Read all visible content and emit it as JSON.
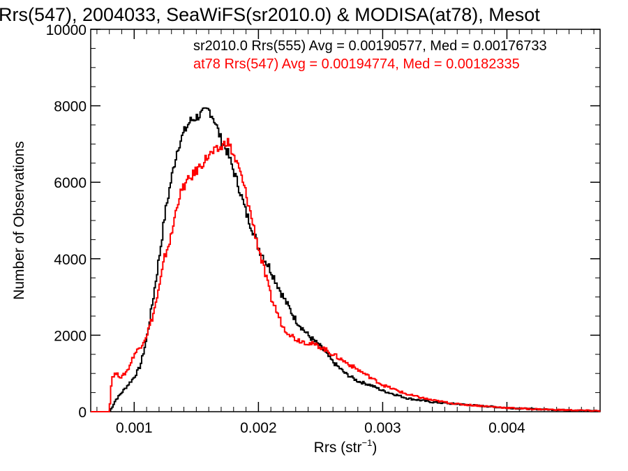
{
  "chart_data": {
    "type": "line",
    "title": "Rrs(547), 2004033, SeaWiFS(sr2010.0) & MODISA(at78), Mesot",
    "xlabel": "Rrs (str",
    "xlabel_sup": "−1",
    "xlabel_close": ")",
    "ylabel": "Number of Observations",
    "xlim": [
      0.00065,
      0.00475
    ],
    "ylim": [
      0,
      10000
    ],
    "xticks": [
      0.001,
      0.002,
      0.003,
      0.004
    ],
    "xtick_labels": [
      "0.001",
      "0.002",
      "0.003",
      "0.004"
    ],
    "yticks": [
      0,
      2000,
      4000,
      6000,
      8000,
      10000
    ],
    "ytick_labels": [
      "0",
      "2000",
      "4000",
      "6000",
      "8000",
      "10000"
    ],
    "grid": false,
    "legend_position": "top-right",
    "series": [
      {
        "name": "sr2010.0 Rrs(555) Avg = 0.00190577, Med = 0.00176733",
        "color": "#000000",
        "x": [
          0.00065,
          0.0008,
          0.00082,
          0.00085,
          0.0009,
          0.00095,
          0.001,
          0.00105,
          0.0011,
          0.00115,
          0.0012,
          0.00125,
          0.0013,
          0.00135,
          0.0014,
          0.00145,
          0.0015,
          0.00155,
          0.0016,
          0.00162,
          0.00165,
          0.0017,
          0.00175,
          0.0018,
          0.00185,
          0.0019,
          0.00195,
          0.002,
          0.0021,
          0.0022,
          0.0023,
          0.0024,
          0.0025,
          0.0026,
          0.0027,
          0.0028,
          0.0029,
          0.003,
          0.0032,
          0.0034,
          0.0036,
          0.0038,
          0.004,
          0.0042,
          0.0044,
          0.0046,
          0.00475
        ],
        "y": [
          0,
          0,
          100,
          300,
          500,
          700,
          900,
          1200,
          1900,
          2900,
          4000,
          5200,
          6100,
          6900,
          7300,
          7600,
          7700,
          7800,
          7900,
          7800,
          7600,
          7100,
          6800,
          6300,
          5800,
          5200,
          4800,
          4300,
          3700,
          3000,
          2400,
          2000,
          1700,
          1300,
          1000,
          800,
          700,
          550,
          350,
          250,
          200,
          150,
          100,
          70,
          50,
          30,
          20
        ]
      },
      {
        "name": "at78 Rrs(547) Avg = 0.00194774, Med = 0.00182335",
        "color": "#ff0000",
        "x": [
          0.00065,
          0.0008,
          0.00082,
          0.00085,
          0.0009,
          0.00095,
          0.001,
          0.00105,
          0.0011,
          0.00115,
          0.0012,
          0.00125,
          0.0013,
          0.00135,
          0.0014,
          0.00145,
          0.0015,
          0.00155,
          0.0016,
          0.00165,
          0.0017,
          0.00175,
          0.0018,
          0.00185,
          0.0019,
          0.00195,
          0.002,
          0.0021,
          0.0022,
          0.0023,
          0.0024,
          0.0025,
          0.0026,
          0.0027,
          0.0028,
          0.0029,
          0.003,
          0.0032,
          0.0034,
          0.0036,
          0.0038,
          0.004,
          0.0042,
          0.0044,
          0.0046,
          0.00475
        ],
        "y": [
          0,
          0,
          900,
          1000,
          900,
          1100,
          1500,
          1700,
          2000,
          2500,
          3200,
          4100,
          4600,
          5500,
          5900,
          6100,
          6300,
          6500,
          6700,
          6800,
          6900,
          7100,
          6700,
          6300,
          5700,
          5000,
          4300,
          3000,
          2200,
          1900,
          1800,
          1700,
          1500,
          1300,
          1100,
          900,
          700,
          450,
          300,
          200,
          150,
          100,
          70,
          50,
          35,
          20
        ]
      }
    ]
  }
}
